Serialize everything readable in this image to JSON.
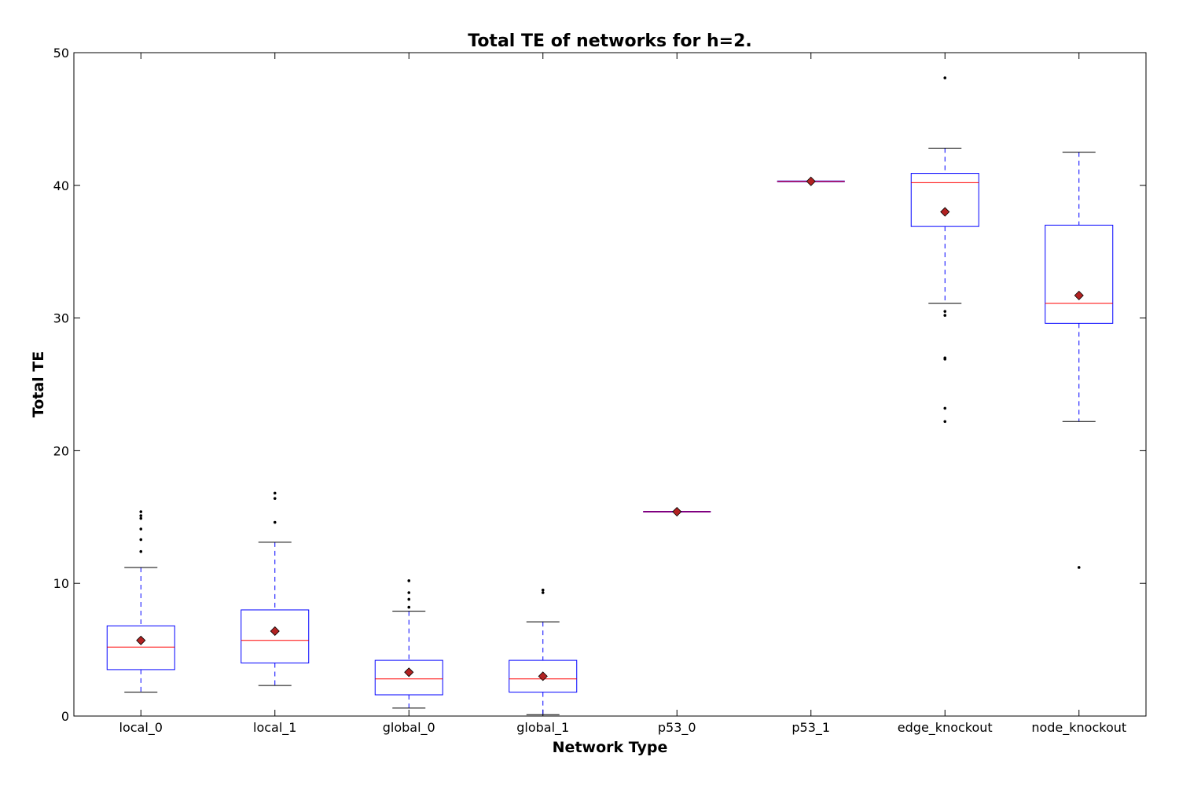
{
  "chart_data": {
    "type": "box",
    "title": "Total TE of networks for h=2.",
    "xlabel": "Network Type",
    "ylabel": "Total TE",
    "ylim": [
      0,
      50
    ],
    "yticks": [
      "0",
      "10",
      "20",
      "30",
      "40",
      "50"
    ],
    "grid": false,
    "legend": "none",
    "categories": [
      "local_0",
      "local_1",
      "global_0",
      "global_1",
      "p53_0",
      "p53_1",
      "edge_knockout",
      "node_knockout"
    ],
    "boxes": [
      {
        "whisker_low": 1.8,
        "q1": 3.5,
        "median": 5.2,
        "q3": 6.8,
        "whisker_high": 11.2,
        "mean": 5.7,
        "outliers": [
          12.4,
          13.3,
          14.1,
          14.9,
          15.1,
          15.4
        ]
      },
      {
        "whisker_low": 2.3,
        "q1": 4.0,
        "median": 5.7,
        "q3": 8.0,
        "whisker_high": 13.1,
        "mean": 6.4,
        "outliers": [
          14.6,
          16.4,
          16.8
        ]
      },
      {
        "whisker_low": 0.6,
        "q1": 1.6,
        "median": 2.8,
        "q3": 4.2,
        "whisker_high": 7.9,
        "mean": 3.3,
        "outliers": [
          8.2,
          8.8,
          9.3,
          10.2
        ]
      },
      {
        "whisker_low": 0.1,
        "q1": 1.8,
        "median": 2.8,
        "q3": 4.2,
        "whisker_high": 7.1,
        "mean": 3.0,
        "outliers": [
          9.3,
          9.5
        ]
      },
      {
        "whisker_low": 15.4,
        "q1": 15.4,
        "median": 15.4,
        "q3": 15.4,
        "whisker_high": 15.4,
        "mean": 15.4,
        "outliers": []
      },
      {
        "whisker_low": 40.3,
        "q1": 40.3,
        "median": 40.3,
        "q3": 40.3,
        "whisker_high": 40.3,
        "mean": 40.3,
        "outliers": []
      },
      {
        "whisker_low": 31.1,
        "q1": 36.9,
        "median": 40.2,
        "q3": 40.9,
        "whisker_high": 42.8,
        "mean": 38.0,
        "outliers": [
          30.2,
          30.5,
          26.9,
          27.0,
          23.2,
          22.2,
          48.1
        ]
      },
      {
        "whisker_low": 22.2,
        "q1": 29.6,
        "median": 31.1,
        "q3": 37.0,
        "whisker_high": 42.5,
        "mean": 31.7,
        "outliers": [
          11.2
        ]
      }
    ],
    "colors": {
      "box": "#0000ff",
      "median": "#ff0000",
      "whisker": "#0000ff",
      "cap": "#000000",
      "mean": "#b22222",
      "outlier": "#000000"
    }
  }
}
